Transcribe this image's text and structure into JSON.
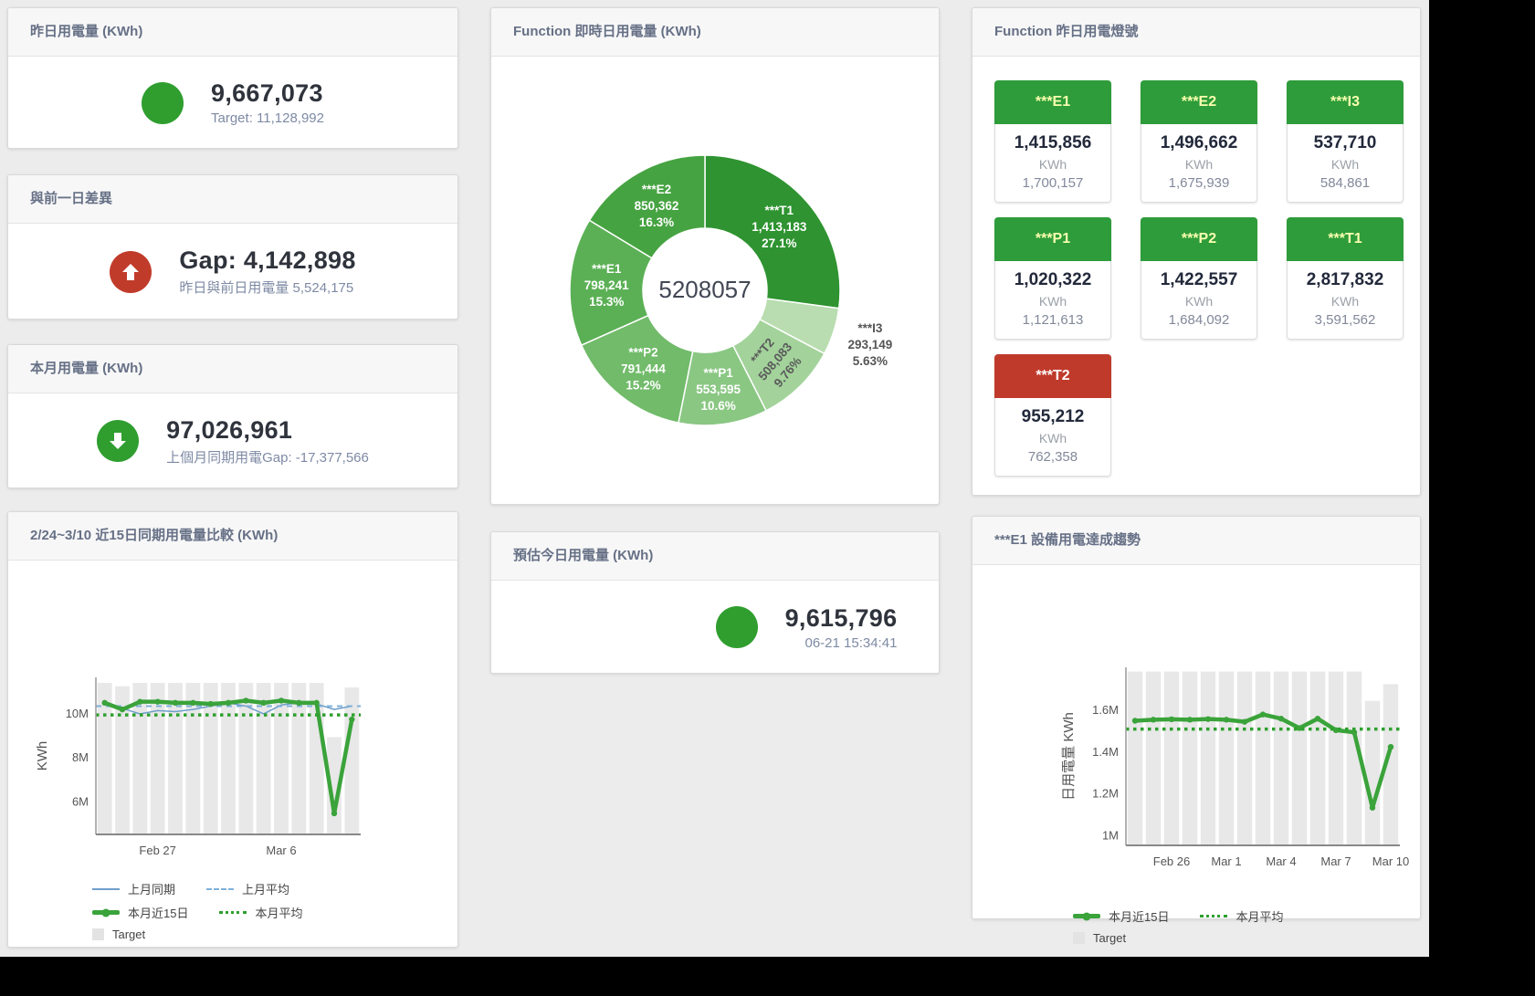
{
  "panels": {
    "yesterday_usage": {
      "title": "昨日用電量 (KWh)",
      "value": "9,667,073",
      "subtitle": "Target: 11,128,992"
    },
    "day_gap": {
      "title": "與前一日差異",
      "value": "Gap: 4,142,898",
      "subtitle": "昨日與前日用電量 5,524,175"
    },
    "month_usage": {
      "title": "本月用電量 (KWh)",
      "value": "97,026,961",
      "subtitle": "上個月同期用電Gap: -17,377,566"
    },
    "today_estimate": {
      "title": "預估今日用電量 (KWh)",
      "value": "9,615,796",
      "subtitle": "06-21 15:34:41"
    },
    "realtime_donut": {
      "title": "Function 即時日用電量 (KWh)"
    },
    "yesterday_lights": {
      "title": "Function 昨日用電燈號",
      "unit_label": "KWh",
      "cards": [
        {
          "label": "***E1",
          "value": "1,415,856",
          "target": "1,700,157",
          "color": "#2e9c3a",
          "text_color": "#fbffb0"
        },
        {
          "label": "***E2",
          "value": "1,496,662",
          "target": "1,675,939",
          "color": "#2e9c3a",
          "text_color": "#fbffb0"
        },
        {
          "label": "***I3",
          "value": "537,710",
          "target": "584,861",
          "color": "#2e9c3a",
          "text_color": "#fbffb0"
        },
        {
          "label": "***P1",
          "value": "1,020,322",
          "target": "1,121,613",
          "color": "#2e9c3a",
          "text_color": "#fbffb0"
        },
        {
          "label": "***P2",
          "value": "1,422,557",
          "target": "1,684,092",
          "color": "#2e9c3a",
          "text_color": "#fbffb0"
        },
        {
          "label": "***T1",
          "value": "2,817,832",
          "target": "3,591,562",
          "color": "#2e9c3a",
          "text_color": "#fbffb0"
        },
        {
          "label": "***T2",
          "value": "955,212",
          "target": "762,358",
          "color": "#bf3a2b",
          "text_color": "#ffffff"
        }
      ]
    },
    "compare_chart": {
      "title": "2/24~3/10 近15日同期用電量比較 (KWh)"
    },
    "e1_trend_chart": {
      "title": "***E1 設備用電達成趨勢"
    }
  },
  "colors": {
    "status_green": "#2f9e2f",
    "status_red": "#c13b2a",
    "chart_green": "#3aa33a",
    "chart_blue": "#6f9fca",
    "target_gray": "#e8e8e8"
  },
  "chart_data": [
    {
      "type": "pie",
      "title": "Function 即時日用電量 (KWh)",
      "center_total": "5208057",
      "slices": [
        {
          "name": "***T1",
          "value": 1413183,
          "value_label": "1,413,183",
          "pct_label": "27.1%",
          "color": "#2e9330",
          "label_color": "#ffffff"
        },
        {
          "name": "***I3",
          "value": 293149,
          "value_label": "293,149",
          "pct_label": "5.63%",
          "color": "#b9ddb0",
          "label_color": "#555555",
          "label_outside": true
        },
        {
          "name": "***T2",
          "value": 508083,
          "value_label": "508,083",
          "pct_label": "9.76%",
          "color": "#a3d39b",
          "label_color": "#5a5a5a",
          "rotate": -50
        },
        {
          "name": "***P1",
          "value": 553595,
          "value_label": "553,595",
          "pct_label": "10.6%",
          "color": "#8ac783",
          "label_color": "#ffffff"
        },
        {
          "name": "***P2",
          "value": 791444,
          "value_label": "791,444",
          "pct_label": "15.2%",
          "color": "#71bb6a",
          "label_color": "#ffffff"
        },
        {
          "name": "***E1",
          "value": 798241,
          "value_label": "798,241",
          "pct_label": "15.3%",
          "color": "#5bb055",
          "label_color": "#ffffff"
        },
        {
          "name": "***E2",
          "value": 850362,
          "value_label": "850,362",
          "pct_label": "16.3%",
          "color": "#46a341",
          "label_color": "#ffffff"
        }
      ]
    },
    {
      "type": "line",
      "name": "compare-chart",
      "title": "2/24~3/10 近15日同期用電量比較 (KWh)",
      "ylabel": "KWh",
      "ylim": [
        4.5,
        11.6
      ],
      "yticks": [
        {
          "v": 6,
          "label": "6M"
        },
        {
          "v": 8,
          "label": "8M"
        },
        {
          "v": 10,
          "label": "10M"
        }
      ],
      "xticks": [
        {
          "i": 3,
          "label": "Feb 27"
        },
        {
          "i": 10,
          "label": "Mar 6"
        }
      ],
      "target_bars": [
        11.35,
        11.2,
        11.35,
        11.35,
        11.35,
        11.35,
        11.35,
        11.35,
        11.35,
        11.35,
        11.35,
        11.35,
        11.35,
        8.9,
        11.15
      ],
      "series": [
        {
          "name": "上月同期",
          "style": "solid-thin",
          "color": "#6f9fca",
          "values": [
            10.5,
            10.2,
            9.95,
            10.1,
            10.05,
            10.15,
            10.3,
            10.45,
            10.3,
            9.95,
            10.35,
            10.45,
            10.4,
            10.15,
            10.3
          ]
        },
        {
          "name": "上月平均",
          "style": "dashed",
          "color": "#7fb0da",
          "avg": 10.3
        },
        {
          "name": "本月近15日",
          "style": "solid-thick",
          "color": "#3aa33a",
          "values": [
            10.45,
            10.15,
            10.5,
            10.5,
            10.45,
            10.45,
            10.4,
            10.45,
            10.55,
            10.45,
            10.55,
            10.45,
            10.45,
            5.45,
            9.7
          ]
        },
        {
          "name": "本月平均",
          "style": "dotted",
          "color": "#2ea02e",
          "avg": 9.9
        }
      ],
      "legend_rows": [
        [
          {
            "label": "上月同期",
            "swatch": "solid-thin",
            "color": "#6f9fca"
          },
          {
            "label": "上月平均",
            "swatch": "dashed",
            "color": "#7fb0da"
          }
        ],
        [
          {
            "label": "本月近15日",
            "swatch": "solid-thick",
            "color": "#3aa33a"
          },
          {
            "label": "本月平均",
            "swatch": "dotted",
            "color": "#2ea02e"
          }
        ],
        [
          {
            "label": "Target",
            "swatch": "square",
            "color": "#e3e3e3"
          }
        ]
      ]
    },
    {
      "type": "line",
      "name": "e1-trend-chart",
      "title": "***E1 設備用電達成趨勢",
      "ylabel": "日用電量 KWh",
      "ylim": [
        0.95,
        1.8
      ],
      "yticks": [
        {
          "v": 1,
          "label": "1M"
        },
        {
          "v": 1.2,
          "label": "1.2M"
        },
        {
          "v": 1.4,
          "label": "1.4M"
        },
        {
          "v": 1.6,
          "label": "1.6M"
        }
      ],
      "xticks": [
        {
          "i": 2,
          "label": "Feb 26"
        },
        {
          "i": 5,
          "label": "Mar 1"
        },
        {
          "i": 8,
          "label": "Mar 4"
        },
        {
          "i": 11,
          "label": "Mar 7"
        },
        {
          "i": 14,
          "label": "Mar 10"
        }
      ],
      "target_bars": [
        1.78,
        1.78,
        1.78,
        1.78,
        1.78,
        1.78,
        1.78,
        1.78,
        1.78,
        1.78,
        1.78,
        1.78,
        1.78,
        1.64,
        1.72
      ],
      "series": [
        {
          "name": "本月近15日",
          "style": "solid-thick",
          "color": "#3aa33a",
          "values": [
            1.545,
            1.55,
            1.552,
            1.55,
            1.553,
            1.55,
            1.54,
            1.575,
            1.555,
            1.51,
            1.555,
            1.5,
            1.49,
            1.13,
            1.42
          ]
        },
        {
          "name": "本月平均",
          "style": "dotted",
          "color": "#2ea02e",
          "avg": 1.505
        }
      ],
      "legend_rows": [
        [
          {
            "label": "本月近15日",
            "swatch": "solid-thick",
            "color": "#3aa33a"
          },
          {
            "label": "本月平均",
            "swatch": "dotted",
            "color": "#2ea02e"
          }
        ],
        [
          {
            "label": "Target",
            "swatch": "square",
            "color": "#e3e3e3"
          }
        ]
      ]
    }
  ]
}
